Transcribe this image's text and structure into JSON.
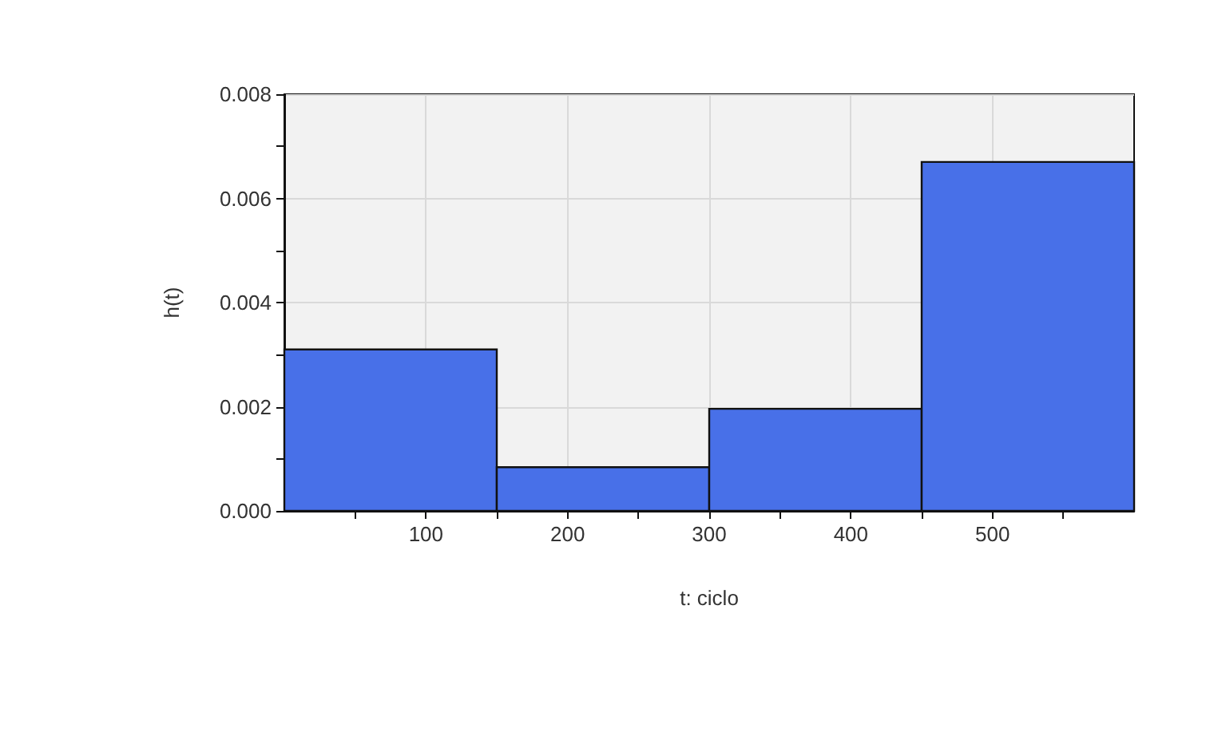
{
  "chart_data": {
    "type": "histogram",
    "xlabel": "t: ciclo",
    "ylabel": "h(t)",
    "bins": [
      0,
      150,
      300,
      450,
      600
    ],
    "values": [
      0.0031,
      0.00084,
      0.00196,
      0.0067
    ],
    "color": "#4870e8",
    "xlim": [
      0,
      600
    ],
    "xticks": [
      {
        "value": 50,
        "label": null
      },
      100,
      {
        "value": 150,
        "label": null
      },
      200,
      {
        "value": 250,
        "label": null
      },
      300,
      {
        "value": 350,
        "label": null
      },
      400,
      {
        "value": 450,
        "label": null
      },
      500,
      {
        "value": 550,
        "label": null
      }
    ],
    "ylim": [
      0,
      0.008
    ],
    "yticks": [
      {
        "value": 0,
        "label": "0.000"
      },
      {
        "value": 0.001,
        "label": null
      },
      0.002,
      {
        "value": 0.003,
        "label": null
      },
      0.004,
      {
        "value": 0.005,
        "label": null
      },
      0.006,
      {
        "value": 0.007,
        "label": null
      },
      0.008
    ],
    "grid": true
  }
}
